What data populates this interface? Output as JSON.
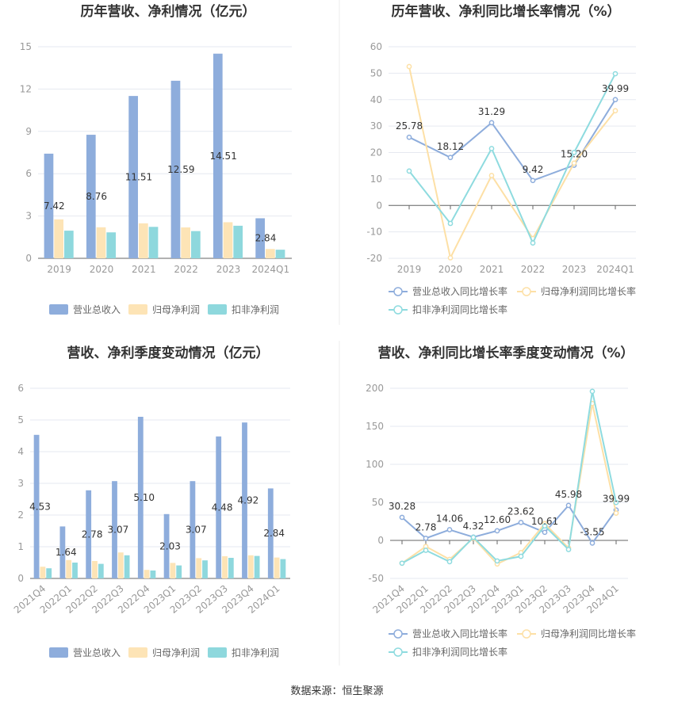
{
  "colors": {
    "revenue": "#8eaddc",
    "net_profit": "#fde4b6",
    "deducted_profit": "#8ed8dd",
    "revenue_line": "#8eaddc",
    "net_line": "#fde0a6",
    "deducted_line": "#8edbdf",
    "grid": "#e6e9f0",
    "axis": "#666666",
    "divider": "#eeeeee"
  },
  "source": "数据来源：恒生聚源",
  "chart_data": [
    {
      "type": "bar",
      "title": "历年营收、净利情况（亿元）",
      "categories": [
        "2019",
        "2020",
        "2021",
        "2022",
        "2023",
        "2024Q1"
      ],
      "ylim": [
        0,
        15
      ],
      "yticks": [
        0,
        3,
        6,
        9,
        12,
        15
      ],
      "grid": true,
      "legend_position": "bottom",
      "series": [
        {
          "name": "营业总收入",
          "values": [
            7.42,
            8.76,
            11.51,
            12.59,
            14.51,
            2.84
          ]
        },
        {
          "name": "归母净利润",
          "values": [
            2.76,
            2.2,
            2.48,
            2.19,
            2.56,
            0.66
          ]
        },
        {
          "name": "扣非净利润",
          "values": [
            1.96,
            1.84,
            2.23,
            1.93,
            2.31,
            0.61
          ]
        }
      ],
      "data_labels": [
        "7.42",
        "8.76",
        "11.51",
        "12.59",
        "14.51",
        "2.84"
      ]
    },
    {
      "type": "line",
      "title": "历年营收、净利同比增长率情况（%）",
      "categories": [
        "2019",
        "2020",
        "2021",
        "2022",
        "2023",
        "2024Q1"
      ],
      "ylim": [
        -20,
        60
      ],
      "yticks": [
        -20,
        -10,
        0,
        10,
        20,
        30,
        40,
        50,
        60
      ],
      "grid": true,
      "legend_position": "bottom",
      "series": [
        {
          "name": "营业总收入同比增长率",
          "values": [
            25.78,
            18.12,
            31.29,
            9.42,
            15.2,
            39.99
          ]
        },
        {
          "name": "归母净利润同比增长率",
          "values": [
            52.5,
            -19.8,
            11.3,
            -12.5,
            16.0,
            35.8
          ]
        },
        {
          "name": "扣非净利润同比增长率",
          "values": [
            13.0,
            -6.8,
            21.5,
            -14.2,
            20.0,
            49.8
          ]
        }
      ],
      "data_labels": [
        "25.78",
        "18.12",
        "31.29",
        "9.42",
        "15.20",
        "39.99"
      ]
    },
    {
      "type": "bar",
      "title": "营收、净利季度变动情况（亿元）",
      "categories": [
        "2021Q4",
        "2022Q1",
        "2022Q2",
        "2022Q3",
        "2022Q4",
        "2023Q1",
        "2023Q2",
        "2023Q3",
        "2023Q4",
        "2024Q1"
      ],
      "ylim": [
        0,
        6
      ],
      "yticks": [
        0,
        1,
        2,
        3,
        4,
        5,
        6
      ],
      "grid": true,
      "legend_position": "bottom",
      "series": [
        {
          "name": "营业总收入",
          "values": [
            4.53,
            1.64,
            2.78,
            3.07,
            5.1,
            2.03,
            3.07,
            4.48,
            4.92,
            2.84
          ]
        },
        {
          "name": "归母净利润",
          "values": [
            0.37,
            0.58,
            0.55,
            0.82,
            0.27,
            0.49,
            0.64,
            0.7,
            0.73,
            0.66
          ]
        },
        {
          "name": "扣非净利润",
          "values": [
            0.32,
            0.5,
            0.46,
            0.73,
            0.25,
            0.41,
            0.57,
            0.65,
            0.71,
            0.61
          ]
        }
      ],
      "data_labels": [
        "4.53",
        "1.64",
        "2.78",
        "3.07",
        "5.10",
        "2.03",
        "3.07",
        "4.48",
        "4.92",
        "2.84"
      ]
    },
    {
      "type": "line",
      "title": "营收、净利同比增长率季度变动情况（%）",
      "categories": [
        "2021Q4",
        "2022Q1",
        "2022Q2",
        "2022Q3",
        "2022Q4",
        "2023Q1",
        "2023Q2",
        "2023Q3",
        "2023Q4",
        "2024Q1"
      ],
      "ylim": [
        -50,
        200
      ],
      "yticks": [
        -50,
        0,
        50,
        100,
        150,
        200
      ],
      "grid": true,
      "legend_position": "bottom",
      "series": [
        {
          "name": "营业总收入同比增长率",
          "values": [
            30.28,
            2.78,
            14.06,
            4.32,
            12.6,
            23.62,
            10.61,
            45.98,
            -3.55,
            39.99
          ]
        },
        {
          "name": "归母净利润同比增长率",
          "values": [
            -30.0,
            -8.0,
            -25.0,
            3.0,
            -31.0,
            -16.0,
            22.0,
            -10.0,
            180.0,
            35.8
          ]
        },
        {
          "name": "扣非净利润同比增长率",
          "values": [
            -30.0,
            -13.0,
            -28.0,
            4.0,
            -27.0,
            -21.0,
            19.0,
            -12.0,
            196.0,
            49.8
          ]
        }
      ],
      "data_labels": [
        "30.28",
        "2.78",
        "14.06",
        "4.32",
        "12.60",
        "23.62",
        "10.61",
        "45.98",
        "-3.55",
        "39.99"
      ]
    }
  ]
}
